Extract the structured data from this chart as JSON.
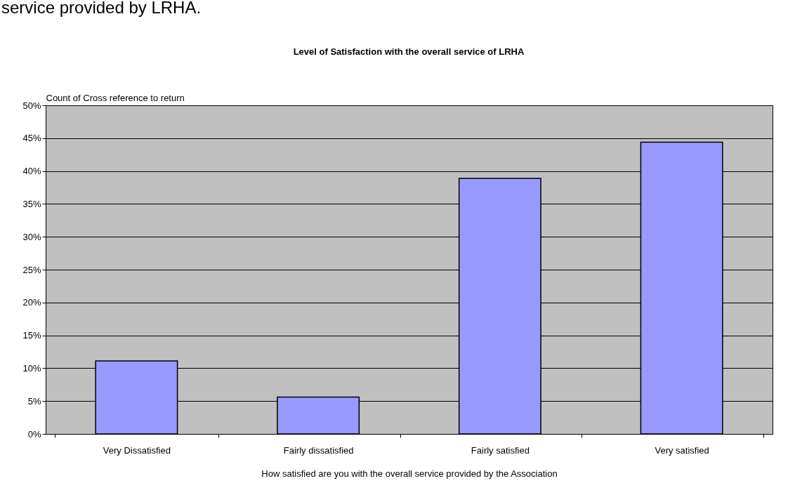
{
  "chart_data": {
    "type": "bar",
    "title": "Level of Satisfaction with the overall service of LRHA",
    "xlabel": "How satisfied are you with the overall service provided by the Association",
    "ylabel": "Count of Cross reference to return",
    "annotations": [
      "service provided by LRHA."
    ],
    "categories": [
      "Very Dissatisfied",
      "Fairly dissatisfied",
      "Fairly satisfied",
      "Very satisfied"
    ],
    "values": [
      11.1,
      5.6,
      38.9,
      44.4
    ],
    "color": "#9999ff",
    "ylim": [
      0,
      50
    ],
    "yticks": [
      {
        "value": 0,
        "label": "0%"
      },
      {
        "value": 5,
        "label": "5%"
      },
      {
        "value": 10,
        "label": "10%"
      },
      {
        "value": 15,
        "label": "15%"
      },
      {
        "value": 20,
        "label": "20%"
      },
      {
        "value": 25,
        "label": "25%"
      },
      {
        "value": 30,
        "label": "30%"
      },
      {
        "value": 35,
        "label": "35%"
      },
      {
        "value": 40,
        "label": "40%"
      },
      {
        "value": 45,
        "label": "45%"
      },
      {
        "value": 50,
        "label": "50%"
      }
    ],
    "grid": "y"
  }
}
